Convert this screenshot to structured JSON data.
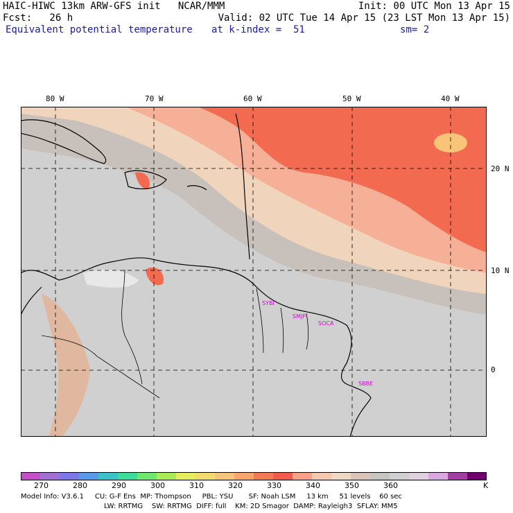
{
  "header": {
    "line1_left": "HAIC-HIWC 13km ARW-GFS init   NCAR/MMM",
    "line1_right": "Init: 00 UTC Mon 13 Apr 15",
    "line2_left": "Fcst:   26 h",
    "line2_right": "Valid: 02 UTC Tue 14 Apr 15 (23 LST Mon 13 Apr 15)",
    "line3_left": "Equivalent potential temperature",
    "line3_mid": "at k-index =  51",
    "line3_right": "sm= 2"
  },
  "map": {
    "lon_labels": [
      "80 W",
      "70 W",
      "60 W",
      "50 W",
      "40 W"
    ],
    "lat_labels": [
      "20 N",
      "10 N",
      "0"
    ],
    "site_labels": [
      "SYBI",
      "SMJP",
      "SOCA",
      "SBBE"
    ],
    "lon_range": [
      -83,
      -35.5
    ],
    "lat_range": [
      -6.5,
      26.5
    ]
  },
  "colorbar": {
    "labels": [
      "270",
      "280",
      "290",
      "300",
      "310",
      "320",
      "330",
      "340",
      "350",
      "360"
    ],
    "unit": "K",
    "colors": [
      "#c54fc9",
      "#a06fd2",
      "#7c78e8",
      "#5a9ae8",
      "#3ec2c9",
      "#3edc9a",
      "#6ee86e",
      "#a8ec5a",
      "#e4ec60",
      "#f2dc70",
      "#f6c47a",
      "#f8a66e",
      "#f27a56",
      "#f25a4e",
      "#f8a08a",
      "#f4c8ac",
      "#f0d8c4",
      "#d8c4b8",
      "#c8c4c0",
      "#d0d0d0",
      "#e0d0e0",
      "#d8a8e0",
      "#a040a0",
      "#700070"
    ]
  },
  "model_info": {
    "line1": "Model Info: V3.6.1     CU: G-F Ens  MP: Thompson     PBL: YSU       SF: Noah LSM     13 km     51 levels    60 sec",
    "line2": "LW: RRTMG    SW: RRTMG  DIFF: full    KM: 2D Smagor  DAMP: Rayleigh3  SFLAY: MM5"
  }
}
